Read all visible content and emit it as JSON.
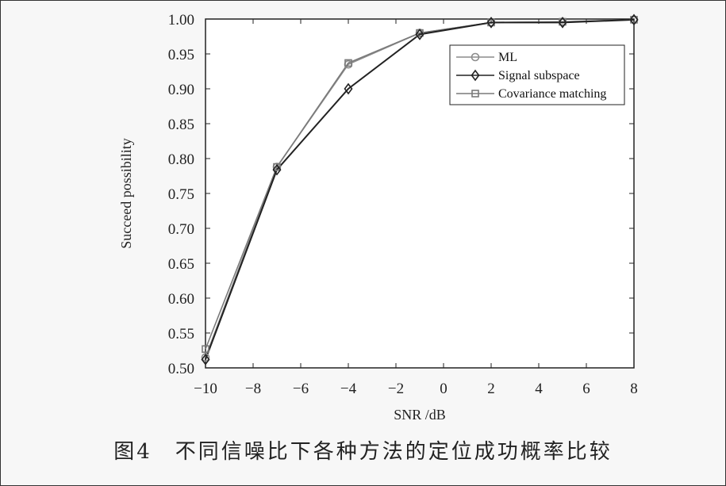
{
  "caption": "图4　不同信噪比下各种方法的定位成功概率比较",
  "chart_data": {
    "type": "line",
    "xlabel": "SNR /dB",
    "ylabel": "Succeed possibility",
    "xlim": [
      -10,
      8
    ],
    "ylim": [
      0.5,
      1.0
    ],
    "xticks": [
      -10,
      -8,
      -6,
      -4,
      -2,
      0,
      2,
      4,
      6,
      8
    ],
    "xtick_labels": [
      "−10",
      "−8",
      "−6",
      "−4",
      "−2",
      "0",
      "2",
      "4",
      "6",
      "8"
    ],
    "yticks": [
      0.5,
      0.55,
      0.6,
      0.65,
      0.7,
      0.75,
      0.8,
      0.85,
      0.9,
      0.95,
      1.0
    ],
    "ytick_labels": [
      "0.50",
      "0.55",
      "0.60",
      "0.65",
      "0.70",
      "0.75",
      "0.80",
      "0.85",
      "0.90",
      "0.95",
      "1.00"
    ],
    "x": [
      -10,
      -7,
      -4,
      -1,
      2,
      5,
      8
    ],
    "series": [
      {
        "name": "ML",
        "marker": "circle",
        "color": "#8c8c8c",
        "values": [
          0.515,
          0.788,
          0.935,
          0.98,
          0.995,
          0.996,
          0.999
        ]
      },
      {
        "name": "Signal subspace",
        "marker": "diamond",
        "color": "#222222",
        "values": [
          0.512,
          0.784,
          0.9,
          0.978,
          0.995,
          0.995,
          0.999
        ]
      },
      {
        "name": "Covariance matching",
        "marker": "square",
        "color": "#7a7a7a",
        "values": [
          0.527,
          0.788,
          0.937,
          0.98,
          0.995,
          0.996,
          0.999
        ]
      }
    ],
    "legend_position": "top-right",
    "grid": false
  }
}
